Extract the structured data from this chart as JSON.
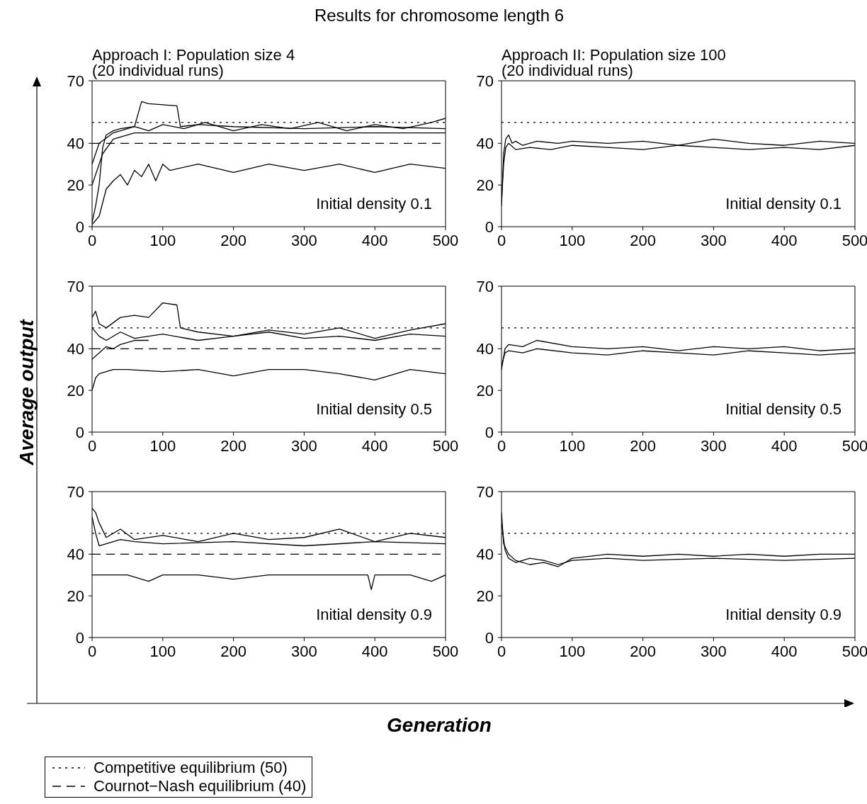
{
  "chart_data": [
    {
      "type": "line",
      "title": "Results for chromosome length 6",
      "subtitle": "Approach I: Population size 4\n(20 individual runs)",
      "xlabel": "Generation",
      "ylabel": "Average output",
      "legend": "bottom",
      "marker": "none",
      "line_style": "solid",
      "xlim": [
        0,
        500
      ],
      "xticks": [
        0,
        100,
        200,
        300,
        400,
        500
      ],
      "ylim": [
        0,
        70
      ],
      "yticks": [
        0,
        20,
        40,
        70
      ],
      "annotations": [
        "Initial density 0.1"
      ],
      "ref_lines": [
        {
          "axis": "y",
          "value": 50,
          "label": "Competitive equilibrium (50)",
          "line_style": "dotted",
          "color": "#000000"
        },
        {
          "axis": "y",
          "value": 40,
          "label": "Cournot−Nash equilibrium (40)",
          "line_style": "dashed",
          "color": "#000000"
        }
      ],
      "series": [
        {
          "color": "#000000",
          "x": [
            0,
            5,
            10,
            15,
            20,
            30,
            40,
            60,
            80,
            100,
            130,
            160,
            200,
            240,
            280,
            320,
            360,
            400,
            440,
            480,
            500
          ],
          "values": [
            2,
            10,
            20,
            38,
            44,
            46,
            47,
            48,
            46,
            49,
            47,
            50,
            46,
            49,
            47,
            50,
            46,
            49,
            47,
            50,
            52
          ]
        },
        {
          "color": "#000000",
          "x": [
            0,
            10,
            20,
            30,
            40,
            50,
            60,
            70,
            80,
            90,
            100,
            110,
            150,
            200,
            250,
            300,
            350,
            400,
            450,
            500
          ],
          "values": [
            1,
            5,
            18,
            22,
            25,
            20,
            27,
            24,
            30,
            22,
            30,
            27,
            30,
            26,
            30,
            27,
            30,
            26,
            30,
            28
          ]
        },
        {
          "color": "#000000",
          "x": [
            0,
            10,
            30,
            50,
            60,
            70,
            80,
            120,
            125,
            150,
            200,
            300,
            400,
            500
          ],
          "values": [
            30,
            40,
            45,
            47,
            48,
            60,
            59,
            58,
            48,
            49,
            48,
            47,
            48,
            47
          ]
        },
        {
          "color": "#000000",
          "x": [
            0,
            15,
            30,
            60,
            100,
            200,
            300,
            400,
            500
          ],
          "values": [
            20,
            35,
            42,
            45,
            45,
            45,
            45,
            45,
            45
          ]
        }
      ]
    },
    {
      "type": "line",
      "subtitle": "Approach II: Population size 100\n(20 individual runs)",
      "marker": "none",
      "line_style": "solid",
      "xlim": [
        0,
        500
      ],
      "xticks": [
        0,
        100,
        200,
        300,
        400,
        500
      ],
      "ylim": [
        0,
        70
      ],
      "yticks": [
        0,
        20,
        40,
        70
      ],
      "annotations": [
        "Initial density 0.1"
      ],
      "ref_lines": [
        {
          "axis": "y",
          "value": 50,
          "line_style": "dotted",
          "color": "#000000"
        }
      ],
      "series": [
        {
          "color": "#000000",
          "x": [
            0,
            3,
            6,
            10,
            15,
            20,
            30,
            50,
            80,
            100,
            150,
            200,
            250,
            300,
            350,
            400,
            450,
            500
          ],
          "values": [
            10,
            35,
            42,
            44,
            40,
            41,
            39,
            41,
            40,
            41,
            40,
            41,
            39,
            42,
            40,
            39,
            41,
            40
          ]
        },
        {
          "color": "#000000",
          "x": [
            0,
            3,
            6,
            10,
            20,
            40,
            70,
            100,
            150,
            200,
            250,
            300,
            350,
            400,
            450,
            500
          ],
          "values": [
            12,
            30,
            38,
            40,
            37,
            38,
            37,
            39,
            38,
            37,
            39,
            38,
            37,
            38,
            37,
            39
          ]
        }
      ]
    },
    {
      "type": "line",
      "marker": "none",
      "line_style": "solid",
      "xlim": [
        0,
        500
      ],
      "xticks": [
        0,
        100,
        200,
        300,
        400,
        500
      ],
      "ylim": [
        0,
        70
      ],
      "yticks": [
        0,
        20,
        40,
        70
      ],
      "annotations": [
        "Initial density 0.5"
      ],
      "ref_lines": [
        {
          "axis": "y",
          "value": 50,
          "line_style": "dotted",
          "color": "#000000"
        },
        {
          "axis": "y",
          "value": 40,
          "line_style": "dashed",
          "color": "#000000"
        }
      ],
      "series": [
        {
          "color": "#000000",
          "x": [
            0,
            5,
            10,
            20,
            40,
            60,
            80,
            100,
            120,
            125,
            150,
            200,
            250,
            300,
            350,
            400,
            450,
            500
          ],
          "values": [
            55,
            58,
            52,
            50,
            55,
            56,
            55,
            62,
            61,
            50,
            48,
            46,
            49,
            47,
            50,
            45,
            49,
            52
          ]
        },
        {
          "color": "#000000",
          "x": [
            0,
            10,
            20,
            40,
            60,
            100,
            150,
            200,
            250,
            300,
            350,
            400,
            450,
            500
          ],
          "values": [
            50,
            46,
            44,
            48,
            45,
            47,
            44,
            46,
            48,
            45,
            46,
            44,
            47,
            46
          ]
        },
        {
          "color": "#000000",
          "x": [
            0,
            5,
            10,
            20,
            30,
            50,
            100,
            150,
            200,
            250,
            300,
            350,
            400,
            450,
            500
          ],
          "values": [
            20,
            26,
            28,
            29,
            30,
            30,
            29,
            30,
            27,
            30,
            30,
            28,
            25,
            30,
            28
          ]
        },
        {
          "color": "#000000",
          "x": [
            0,
            10,
            20,
            30,
            40,
            60,
            80
          ],
          "values": [
            35,
            38,
            41,
            40,
            42,
            44,
            44
          ]
        }
      ]
    },
    {
      "type": "line",
      "marker": "none",
      "line_style": "solid",
      "xlim": [
        0,
        500
      ],
      "xticks": [
        0,
        100,
        200,
        300,
        400,
        500
      ],
      "ylim": [
        0,
        70
      ],
      "yticks": [
        0,
        20,
        40,
        70
      ],
      "annotations": [
        "Initial density 0.5"
      ],
      "ref_lines": [
        {
          "axis": "y",
          "value": 50,
          "line_style": "dotted",
          "color": "#000000"
        }
      ],
      "series": [
        {
          "color": "#000000",
          "x": [
            0,
            5,
            10,
            30,
            50,
            100,
            150,
            200,
            250,
            300,
            350,
            400,
            450,
            500
          ],
          "values": [
            30,
            40,
            42,
            41,
            44,
            41,
            40,
            41,
            39,
            41,
            40,
            41,
            39,
            40
          ]
        },
        {
          "color": "#000000",
          "x": [
            0,
            5,
            10,
            30,
            50,
            100,
            150,
            200,
            250,
            300,
            350,
            400,
            450,
            500
          ],
          "values": [
            32,
            38,
            39,
            38,
            40,
            38,
            37,
            39,
            38,
            37,
            39,
            38,
            37,
            38
          ]
        }
      ]
    },
    {
      "type": "line",
      "marker": "none",
      "line_style": "solid",
      "xlim": [
        0,
        500
      ],
      "xticks": [
        0,
        100,
        200,
        300,
        400,
        500
      ],
      "ylim": [
        0,
        70
      ],
      "yticks": [
        0,
        20,
        40,
        70
      ],
      "annotations": [
        "Initial density 0.9"
      ],
      "ref_lines": [
        {
          "axis": "y",
          "value": 50,
          "line_style": "dotted",
          "color": "#000000"
        },
        {
          "axis": "y",
          "value": 40,
          "line_style": "dashed",
          "color": "#000000"
        }
      ],
      "series": [
        {
          "color": "#000000",
          "x": [
            0,
            5,
            10,
            20,
            40,
            60,
            100,
            150,
            200,
            250,
            300,
            350,
            400,
            450,
            500
          ],
          "values": [
            62,
            60,
            55,
            48,
            52,
            47,
            49,
            46,
            50,
            47,
            48,
            52,
            46,
            50,
            48
          ]
        },
        {
          "color": "#000000",
          "x": [
            0,
            5,
            10,
            20,
            40,
            60,
            100,
            200,
            300,
            400,
            500
          ],
          "values": [
            58,
            50,
            44,
            45,
            47,
            46,
            45,
            46,
            44,
            46,
            45
          ]
        },
        {
          "color": "#000000",
          "x": [
            0,
            5,
            10,
            50,
            80,
            100,
            150,
            200,
            250,
            300,
            350,
            390,
            395,
            400,
            450,
            480,
            500
          ],
          "values": [
            30,
            30,
            30,
            30,
            27,
            30,
            30,
            28,
            30,
            30,
            30,
            30,
            23,
            30,
            30,
            27,
            30
          ]
        }
      ]
    },
    {
      "type": "line",
      "marker": "none",
      "line_style": "solid",
      "xlim": [
        0,
        500
      ],
      "xticks": [
        0,
        100,
        200,
        300,
        400,
        500
      ],
      "ylim": [
        0,
        70
      ],
      "yticks": [
        0,
        20,
        40,
        70
      ],
      "annotations": [
        "Initial density 0.9"
      ],
      "ref_lines": [
        {
          "axis": "y",
          "value": 50,
          "line_style": "dotted",
          "color": "#000000"
        }
      ],
      "series": [
        {
          "color": "#000000",
          "x": [
            0,
            3,
            10,
            20,
            40,
            60,
            80,
            100,
            150,
            200,
            250,
            300,
            350,
            400,
            450,
            500
          ],
          "values": [
            60,
            45,
            40,
            37,
            35,
            36,
            34,
            38,
            40,
            39,
            40,
            39,
            40,
            39,
            40,
            40
          ]
        },
        {
          "color": "#000000",
          "x": [
            0,
            5,
            10,
            20,
            40,
            60,
            80,
            100,
            150,
            200,
            300,
            400,
            500
          ],
          "values": [
            55,
            42,
            38,
            36,
            38,
            37,
            35,
            37,
            38,
            37,
            38,
            37,
            38
          ]
        }
      ]
    }
  ]
}
